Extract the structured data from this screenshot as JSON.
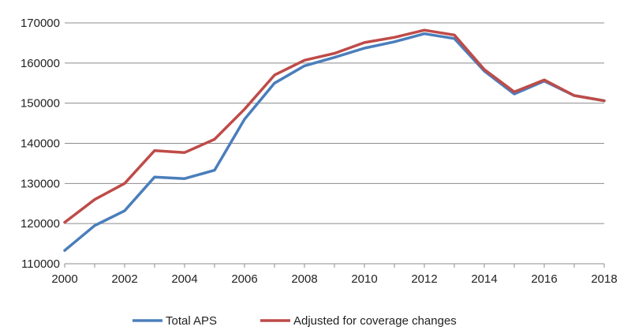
{
  "chart_data": {
    "type": "line",
    "x": [
      2000,
      2001,
      2002,
      2003,
      2004,
      2005,
      2006,
      2007,
      2008,
      2009,
      2010,
      2011,
      2012,
      2013,
      2014,
      2015,
      2016,
      2017,
      2018
    ],
    "series": [
      {
        "name": "Total APS",
        "color": "#4a7ebb",
        "values": [
          113300,
          119500,
          123200,
          131600,
          131200,
          133300,
          146000,
          155000,
          159300,
          161400,
          163700,
          165300,
          167300,
          166100,
          158000,
          152300,
          155500,
          151900,
          150600
        ]
      },
      {
        "name": "Adjusted for coverage changes",
        "color": "#be4b48",
        "values": [
          120300,
          126000,
          130000,
          138200,
          137700,
          141000,
          148500,
          157000,
          160700,
          162400,
          165100,
          166400,
          168200,
          167000,
          158400,
          152800,
          155800,
          151900,
          150600
        ]
      }
    ],
    "title": "",
    "xlabel": "",
    "ylabel": "",
    "ylim": [
      110000,
      170000
    ],
    "y_ticks": [
      "110000",
      "120000",
      "130000",
      "140000",
      "150000",
      "160000",
      "170000"
    ],
    "x_ticks": [
      "2000",
      "2002",
      "2004",
      "2006",
      "2008",
      "2010",
      "2012",
      "2014",
      "2016",
      "2018"
    ],
    "grid": "horizontal",
    "legend_position": "bottom-center",
    "gridline_color": "#8c8c8c",
    "axis_color": "#8c8c8c"
  }
}
